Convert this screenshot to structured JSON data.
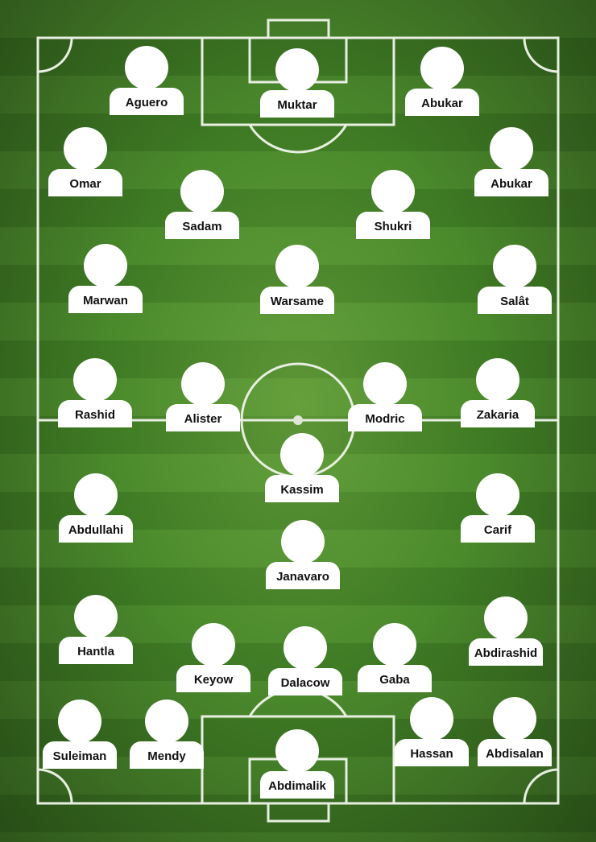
{
  "colors": {
    "grass_light": "#4b8a2c",
    "grass_dark": "#3f7b24",
    "lines": "#e8eee2",
    "avatar": "#ffffff",
    "name_text": "#111111"
  },
  "players": [
    {
      "name": "Muktar"
    },
    {
      "name": "Aguero"
    },
    {
      "name": "Abukar"
    },
    {
      "name": "Omar"
    },
    {
      "name": "Abukar"
    },
    {
      "name": "Sadam"
    },
    {
      "name": "Shukri"
    },
    {
      "name": "Marwan"
    },
    {
      "name": "Warsame"
    },
    {
      "name": "Salât"
    },
    {
      "name": "Rashid"
    },
    {
      "name": "Alister"
    },
    {
      "name": "Modric"
    },
    {
      "name": "Zakaria"
    },
    {
      "name": "Kassim"
    },
    {
      "name": "Abdullahi"
    },
    {
      "name": "Carif"
    },
    {
      "name": "Janavaro"
    },
    {
      "name": "Hantla"
    },
    {
      "name": "Abdirashid"
    },
    {
      "name": "Keyow"
    },
    {
      "name": "Dalacow"
    },
    {
      "name": "Gaba"
    },
    {
      "name": "Suleiman"
    },
    {
      "name": "Mendy"
    },
    {
      "name": "Hassan"
    },
    {
      "name": "Abdisalan"
    },
    {
      "name": "Abdimalik"
    }
  ]
}
